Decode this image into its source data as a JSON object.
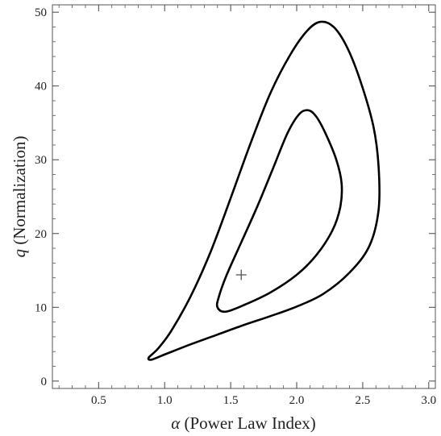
{
  "chart_data": {
    "type": "contour",
    "xlabel_symbol": "α",
    "xlabel_text": " (Power Law Index)",
    "ylabel_symbol": "q",
    "ylabel_text": " (Normalization)",
    "xlim": [
      0.15,
      3.05
    ],
    "ylim": [
      -1,
      51
    ],
    "x_ticks": [
      0.5,
      1.0,
      1.5,
      2.0,
      2.5,
      3.0
    ],
    "x_tick_labels": [
      "0.5",
      "1.0",
      "1.5",
      "2.0",
      "2.5",
      "3.0"
    ],
    "y_ticks": [
      0,
      10,
      20,
      30,
      40,
      50
    ],
    "y_tick_labels": [
      "0",
      "10",
      "20",
      "30",
      "40",
      "50"
    ],
    "x_minor_step": 0.1,
    "y_minor_step": 2,
    "grid": false,
    "best_fit": {
      "x": 1.58,
      "y": 14.4,
      "marker": "+"
    },
    "contours": [
      {
        "points": [
          [
            0.9,
            2.9
          ],
          [
            1.0,
            3.6
          ],
          [
            1.2,
            5.0
          ],
          [
            1.4,
            6.3
          ],
          [
            1.6,
            7.6
          ],
          [
            1.8,
            8.8
          ],
          [
            2.0,
            10.1
          ],
          [
            2.2,
            11.8
          ],
          [
            2.4,
            14.7
          ],
          [
            2.55,
            18.3
          ],
          [
            2.62,
            23.2
          ],
          [
            2.62,
            29.1
          ],
          [
            2.58,
            34.6
          ],
          [
            2.48,
            40.8
          ],
          [
            2.38,
            45.3
          ],
          [
            2.28,
            48.0
          ],
          [
            2.18,
            48.7
          ],
          [
            2.08,
            47.5
          ],
          [
            1.95,
            44.2
          ],
          [
            1.8,
            39.0
          ],
          [
            1.65,
            32.2
          ],
          [
            1.5,
            24.8
          ],
          [
            1.35,
            17.6
          ],
          [
            1.2,
            11.6
          ],
          [
            1.05,
            6.8
          ],
          [
            0.95,
            4.4
          ],
          [
            0.88,
            3.2
          ],
          [
            0.9,
            2.9
          ]
        ]
      },
      {
        "points": [
          [
            1.46,
            9.4
          ],
          [
            1.6,
            10.3
          ],
          [
            1.8,
            12.0
          ],
          [
            2.0,
            14.4
          ],
          [
            2.15,
            17.1
          ],
          [
            2.27,
            20.4
          ],
          [
            2.33,
            23.6
          ],
          [
            2.34,
            26.8
          ],
          [
            2.3,
            30.0
          ],
          [
            2.22,
            33.5
          ],
          [
            2.15,
            35.8
          ],
          [
            2.09,
            36.7
          ],
          [
            2.02,
            36.2
          ],
          [
            1.93,
            33.6
          ],
          [
            1.82,
            28.8
          ],
          [
            1.7,
            23.6
          ],
          [
            1.58,
            18.8
          ],
          [
            1.47,
            14.4
          ],
          [
            1.41,
            11.4
          ],
          [
            1.4,
            10.0
          ],
          [
            1.46,
            9.4
          ]
        ]
      }
    ]
  }
}
